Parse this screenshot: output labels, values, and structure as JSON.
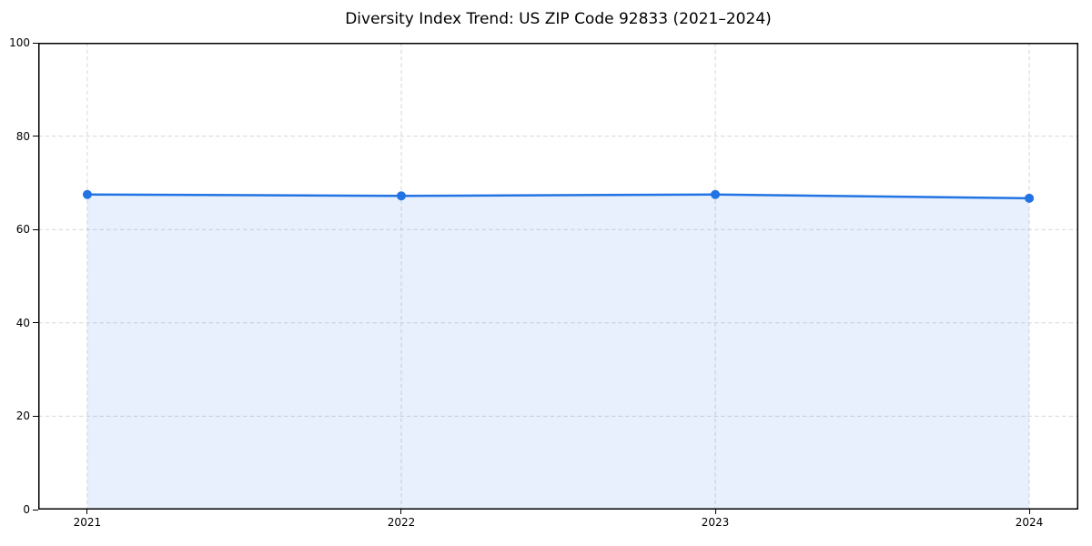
{
  "chart_data": {
    "type": "area",
    "title": "Diversity Index Trend: US ZIP Code 92833 (2021–2024)",
    "x": [
      2021,
      2022,
      2023,
      2024
    ],
    "x_tick_labels": [
      "2021",
      "2022",
      "2023",
      "2024"
    ],
    "series": [
      {
        "name": "Diversity Index",
        "values": [
          67.5,
          67.2,
          67.5,
          66.7
        ]
      }
    ],
    "xlabel": "",
    "ylabel": "",
    "ylim": [
      0,
      100
    ],
    "y_ticks": [
      0,
      20,
      40,
      60,
      80,
      100
    ],
    "grid": true,
    "grid_style": "dashed",
    "legend_position": "none",
    "marker": "circle",
    "colors": {
      "line": "#2273e3",
      "marker": "#2273e3",
      "fill": "rgba(34,115,227,0.11)",
      "grid": "#d7d7d7",
      "spine": "#000000",
      "text": "#000000",
      "background": "#ffffff"
    }
  }
}
